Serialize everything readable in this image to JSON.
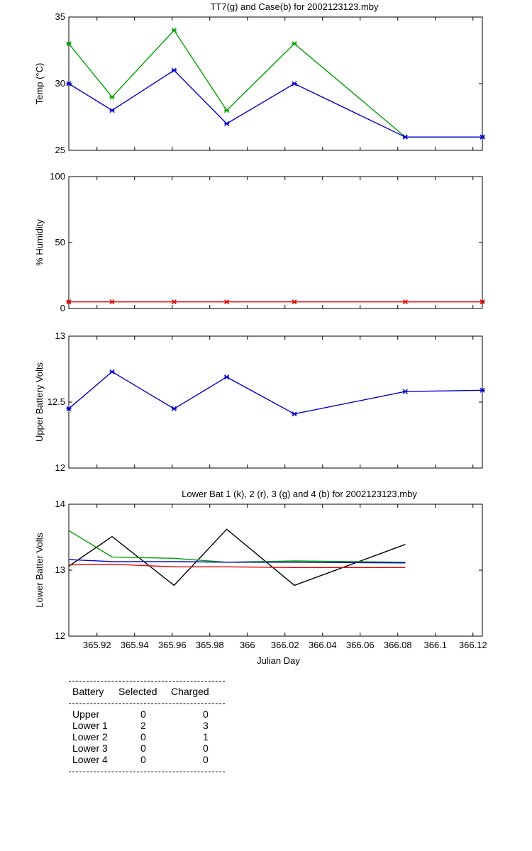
{
  "chart_data": [
    {
      "type": "line",
      "title": "TT7(g) and Case(b) for 2002123123.mby",
      "ylabel": "Temp  (°C)",
      "xlabel": "",
      "xlim": [
        365.905,
        366.125
      ],
      "ylim": [
        25,
        35
      ],
      "yticks": [
        25,
        30,
        35
      ],
      "markers": true,
      "x": [
        365.905,
        365.928,
        365.961,
        365.989,
        366.025,
        366.084,
        366.125
      ],
      "series": [
        {
          "name": "TT7",
          "color": "#00a000",
          "values": [
            33,
            29,
            34,
            28,
            33,
            26,
            26
          ]
        },
        {
          "name": "Case",
          "color": "#0000d0",
          "values": [
            30,
            28,
            31,
            27,
            30,
            26,
            26
          ]
        }
      ]
    },
    {
      "type": "line",
      "title": "",
      "ylabel": "% Humidity",
      "xlabel": "",
      "xlim": [
        365.905,
        366.125
      ],
      "ylim": [
        0,
        100
      ],
      "yticks": [
        0,
        50,
        100
      ],
      "markers": true,
      "x": [
        365.905,
        365.928,
        365.961,
        365.989,
        366.025,
        366.084,
        366.125
      ],
      "series": [
        {
          "color": "#e00000",
          "values": [
            5,
            5,
            5,
            5,
            5,
            5,
            5
          ]
        }
      ]
    },
    {
      "type": "line",
      "title": "",
      "ylabel": "Upper Battery Volts",
      "xlabel": "",
      "xlim": [
        365.905,
        366.125
      ],
      "ylim": [
        12,
        13
      ],
      "yticks": [
        12,
        12.5,
        13
      ],
      "markers": true,
      "x": [
        365.905,
        365.928,
        365.961,
        365.989,
        366.025,
        366.084,
        366.125
      ],
      "series": [
        {
          "color": "#0000d0",
          "values": [
            12.45,
            12.73,
            12.45,
            12.69,
            12.41,
            12.58,
            12.59
          ]
        }
      ]
    },
    {
      "type": "line",
      "title": "Lower Bat 1 (k), 2 (r), 3 (g) and 4 (b) for 2002123123.mby",
      "ylabel": "Lower Batter Volts",
      "xlabel": "Julian Day",
      "xlim": [
        365.905,
        366.125
      ],
      "ylim": [
        12,
        14
      ],
      "yticks": [
        12,
        13,
        14
      ],
      "xticks": [
        365.92,
        365.94,
        365.96,
        365.98,
        366,
        366.02,
        366.04,
        366.06,
        366.08,
        366.1,
        366.12
      ],
      "xticklabels": [
        "365.92",
        "365.94",
        "365.96",
        "365.98",
        "366",
        "366.02",
        "366.04",
        "366.06",
        "366.08",
        "366.1",
        "366.12"
      ],
      "markers": false,
      "x": [
        365.905,
        365.928,
        365.961,
        365.989,
        366.025,
        366.084
      ],
      "series": [
        {
          "color": "#000000",
          "values": [
            13.06,
            13.51,
            12.77,
            13.62,
            12.77,
            13.39
          ]
        },
        {
          "color": "#e00000",
          "values": [
            13.08,
            13.09,
            13.05,
            13.05,
            13.04,
            13.04
          ]
        },
        {
          "color": "#00a000",
          "values": [
            13.6,
            13.2,
            13.18,
            13.12,
            13.14,
            13.12
          ]
        },
        {
          "color": "#0000d0",
          "values": [
            13.16,
            13.13,
            13.13,
            13.12,
            13.12,
            13.11
          ]
        }
      ]
    }
  ],
  "table": {
    "headers": [
      "Battery",
      "Selected",
      "Charged"
    ],
    "rows": [
      [
        "Upper",
        "0",
        "0"
      ],
      [
        "Lower 1",
        "2",
        "3"
      ],
      [
        "Lower 2",
        "0",
        "1"
      ],
      [
        "Lower 3",
        "0",
        "0"
      ],
      [
        "Lower 4",
        "0",
        "0"
      ]
    ]
  }
}
